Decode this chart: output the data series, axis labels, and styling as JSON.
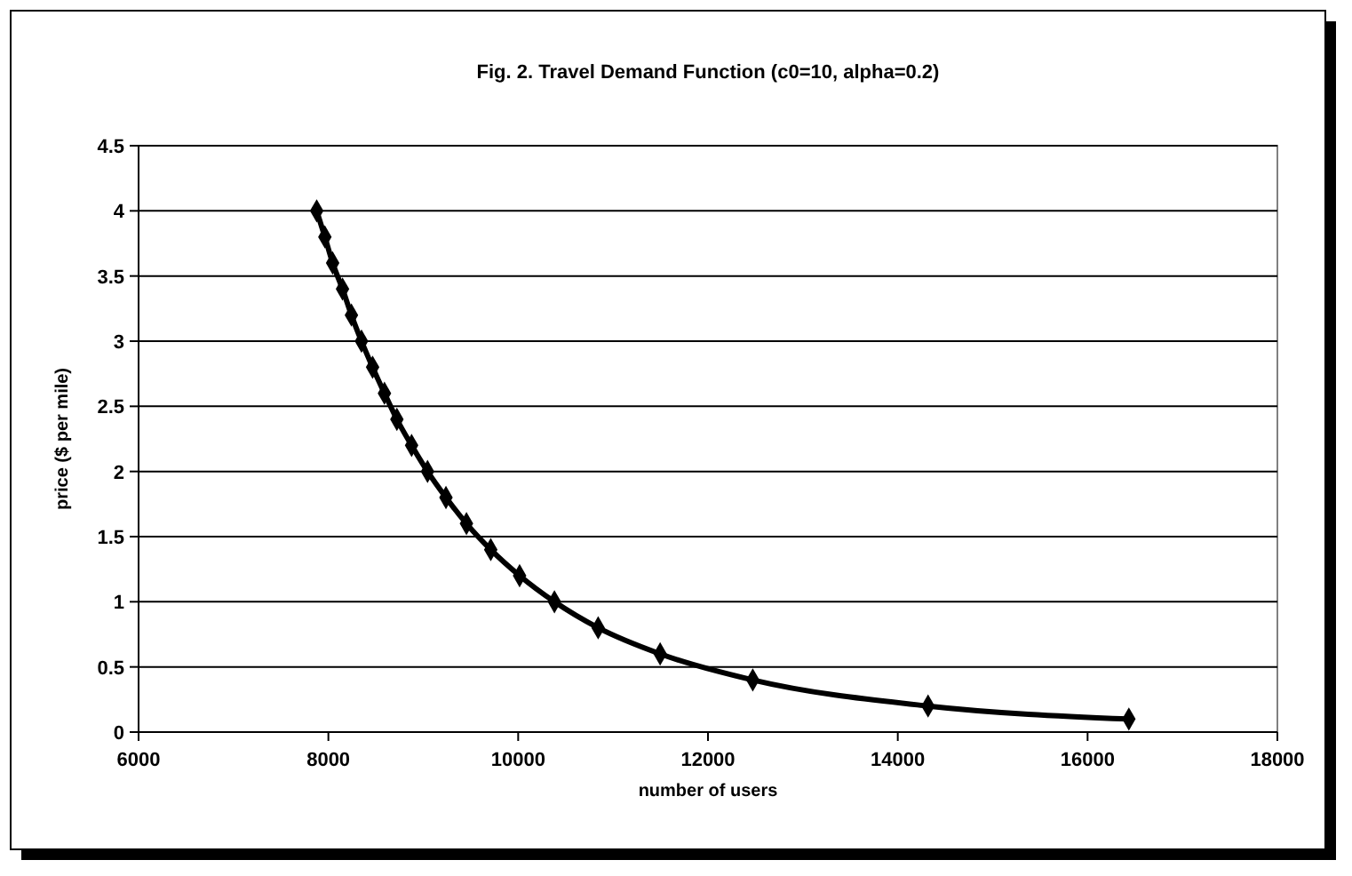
{
  "chart_data": {
    "type": "line",
    "title": "Fig. 2. Travel Demand Function (c0=10, alpha=0.2)",
    "xlabel": "number of users",
    "ylabel": "price ($ per mile)",
    "xlim": [
      6000,
      18000
    ],
    "xticks": [
      6000,
      8000,
      10000,
      12000,
      14000,
      16000,
      18000
    ],
    "ylim": [
      0,
      4.5
    ],
    "yticks": [
      0,
      0.5,
      1,
      1.5,
      2,
      2.5,
      3,
      3.5,
      4,
      4.5
    ],
    "grid": "y",
    "marker": "diamond",
    "line_style": "solid",
    "series": [
      {
        "color": "#000000",
        "x": [
          7877,
          7963,
          8045,
          8149,
          8243,
          8349,
          8466,
          8591,
          8722,
          8877,
          9045,
          9239,
          9455,
          9711,
          10015,
          10382,
          10843,
          11496,
          12472,
          14319,
          16435
        ],
        "values": [
          4,
          3.8,
          3.6,
          3.4,
          3.2,
          3,
          2.8,
          2.6,
          2.4,
          2.2,
          2,
          1.8,
          1.6,
          1.4,
          1.2,
          1,
          0.8,
          0.6,
          0.4,
          0.2,
          0.1
        ]
      }
    ]
  }
}
